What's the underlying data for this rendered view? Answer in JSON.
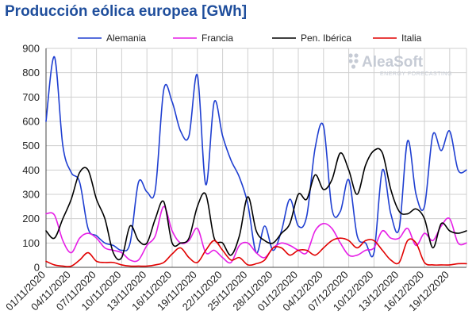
{
  "chart_data": {
    "type": "line",
    "title": "Producción eólica europea [GWh]",
    "xlabel": "",
    "ylabel": "",
    "ylim": [
      0,
      900
    ],
    "yticks": [
      0,
      100,
      200,
      300,
      400,
      500,
      600,
      700,
      800,
      900
    ],
    "grid": true,
    "legend_position": "top",
    "x_tick_labels": [
      "01/11/2020",
      "04/11/2020",
      "07/11/2020",
      "10/11/2020",
      "13/11/2020",
      "16/11/2020",
      "19/11/2020",
      "22/11/2020",
      "25/11/2020",
      "28/11/2020",
      "01/12/2020",
      "04/12/2020",
      "07/12/2020",
      "10/12/2020",
      "13/12/2020",
      "16/12/2020",
      "19/12/2020"
    ],
    "x": [
      "01/11/2020",
      "02/11/2020",
      "03/11/2020",
      "04/11/2020",
      "05/11/2020",
      "06/11/2020",
      "07/11/2020",
      "08/11/2020",
      "09/11/2020",
      "10/11/2020",
      "11/11/2020",
      "12/11/2020",
      "13/11/2020",
      "14/11/2020",
      "15/11/2020",
      "16/11/2020",
      "17/11/2020",
      "18/11/2020",
      "19/11/2020",
      "20/11/2020",
      "21/11/2020",
      "22/11/2020",
      "23/11/2020",
      "24/11/2020",
      "25/11/2020",
      "26/11/2020",
      "27/11/2020",
      "28/11/2020",
      "29/11/2020",
      "30/11/2020",
      "01/12/2020",
      "02/12/2020",
      "03/12/2020",
      "04/12/2020",
      "05/12/2020",
      "06/12/2020",
      "07/12/2020",
      "08/12/2020",
      "09/12/2020",
      "10/12/2020",
      "11/12/2020",
      "12/12/2020",
      "13/12/2020",
      "14/12/2020",
      "15/12/2020",
      "16/12/2020",
      "17/12/2020",
      "18/12/2020",
      "19/12/2020",
      "20/12/2020",
      "21/12/2020"
    ],
    "series": [
      {
        "name": "Alemania",
        "color": "#1f3fd1",
        "values": [
          600,
          865,
          500,
          390,
          350,
          160,
          130,
          100,
          90,
          70,
          100,
          350,
          310,
          320,
          730,
          680,
          560,
          540,
          790,
          340,
          680,
          540,
          440,
          370,
          260,
          60,
          170,
          70,
          150,
          280,
          170,
          210,
          490,
          580,
          240,
          230,
          360,
          130,
          100,
          60,
          400,
          220,
          160,
          520,
          300,
          250,
          545,
          480,
          560,
          400,
          400
        ]
      },
      {
        "name": "Francia",
        "color": "#e61ee6",
        "values": [
          220,
          215,
          110,
          60,
          120,
          140,
          120,
          80,
          70,
          60,
          30,
          30,
          90,
          130,
          250,
          150,
          100,
          110,
          160,
          60,
          70,
          40,
          20,
          90,
          100,
          60,
          40,
          80,
          100,
          90,
          70,
          60,
          150,
          180,
          160,
          100,
          50,
          50,
          70,
          80,
          150,
          120,
          120,
          160,
          90,
          140,
          110,
          170,
          200,
          100,
          100
        ]
      },
      {
        "name": "Pen. Ibérica",
        "color": "#000000",
        "values": [
          150,
          120,
          200,
          280,
          390,
          400,
          280,
          200,
          60,
          40,
          170,
          110,
          100,
          200,
          270,
          100,
          100,
          120,
          250,
          300,
          120,
          100,
          50,
          130,
          290,
          150,
          110,
          100,
          140,
          180,
          300,
          280,
          380,
          320,
          360,
          470,
          400,
          300,
          420,
          480,
          470,
          320,
          230,
          220,
          240,
          200,
          80,
          180,
          150,
          140,
          150
        ]
      },
      {
        "name": "Italia",
        "color": "#e10000",
        "values": [
          25,
          10,
          5,
          5,
          30,
          60,
          25,
          20,
          20,
          10,
          5,
          5,
          5,
          10,
          20,
          55,
          80,
          40,
          20,
          70,
          110,
          70,
          30,
          40,
          10,
          15,
          30,
          80,
          80,
          50,
          70,
          70,
          50,
          80,
          110,
          120,
          110,
          80,
          110,
          110,
          70,
          30,
          20,
          110,
          100,
          20,
          10,
          10,
          10,
          15,
          15
        ]
      }
    ]
  },
  "watermark": {
    "name": "AleaSoft",
    "tagline": "ENERGY FORECASTING"
  }
}
